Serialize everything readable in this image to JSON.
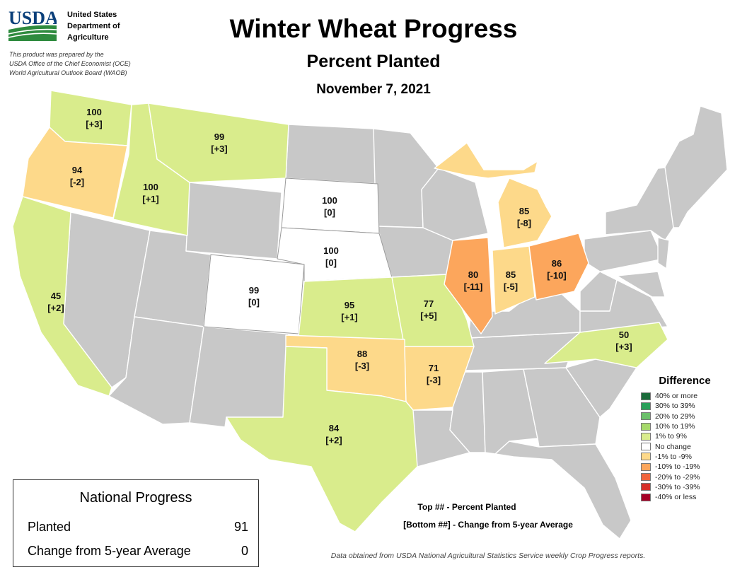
{
  "header": {
    "agency_abbr": "USDA",
    "agency_lines": [
      "United States",
      "Department of",
      "Agriculture"
    ],
    "prepared_lines": [
      "This product was prepared by the",
      "USDA Office of the Chief Economist (OCE)",
      "World Agricultural Outlook Board (WAOB)"
    ],
    "title": "Winter Wheat Progress",
    "subtitle": "Percent Planted",
    "date": "November 7, 2021"
  },
  "colors": {
    "no_data": "#c8c8c8",
    "gain_1_9": "#d9ec8c",
    "no_change": "#ffffff",
    "loss_1_9": "#fdd98a",
    "loss_10_19": "#fca65c",
    "usda_blue": "#0a3f7a",
    "usda_green": "#2e8b3e"
  },
  "states": [
    {
      "name": "Washington",
      "value": "100",
      "change": "[+3]",
      "color": "#d9ec8c"
    },
    {
      "name": "Oregon",
      "value": "94",
      "change": "[-2]",
      "color": "#fdd98a"
    },
    {
      "name": "Idaho",
      "value": "100",
      "change": "[+1]",
      "color": "#d9ec8c"
    },
    {
      "name": "Montana",
      "value": "99",
      "change": "[+3]",
      "color": "#d9ec8c"
    },
    {
      "name": "California",
      "value": "45",
      "change": "[+2]",
      "color": "#d9ec8c"
    },
    {
      "name": "South Dakota",
      "value": "100",
      "change": "[0]",
      "color": "#ffffff"
    },
    {
      "name": "Nebraska",
      "value": "100",
      "change": "[0]",
      "color": "#ffffff"
    },
    {
      "name": "Colorado",
      "value": "99",
      "change": "[0]",
      "color": "#ffffff"
    },
    {
      "name": "Kansas",
      "value": "95",
      "change": "[+1]",
      "color": "#d9ec8c"
    },
    {
      "name": "Missouri",
      "value": "77",
      "change": "[+5]",
      "color": "#d9ec8c"
    },
    {
      "name": "Illinois",
      "value": "80",
      "change": "[-11]",
      "color": "#fca65c"
    },
    {
      "name": "Indiana",
      "value": "85",
      "change": "[-5]",
      "color": "#fdd98a"
    },
    {
      "name": "Ohio",
      "value": "86",
      "change": "[-10]",
      "color": "#fca65c"
    },
    {
      "name": "Michigan",
      "value": "85",
      "change": "[-8]",
      "color": "#fdd98a"
    },
    {
      "name": "Oklahoma",
      "value": "88",
      "change": "[-3]",
      "color": "#fdd98a"
    },
    {
      "name": "Arkansas",
      "value": "71",
      "change": "[-3]",
      "color": "#fdd98a"
    },
    {
      "name": "Texas",
      "value": "84",
      "change": "[+2]",
      "color": "#d9ec8c"
    },
    {
      "name": "North Carolina",
      "value": "50",
      "change": "[+3]",
      "color": "#d9ec8c"
    }
  ],
  "legend": {
    "title": "Difference",
    "items": [
      {
        "label": "40% or more",
        "color": "#1a6b3a"
      },
      {
        "label": "30% to 39%",
        "color": "#2aa05a"
      },
      {
        "label": "20% to 29%",
        "color": "#6bc06a"
      },
      {
        "label": "10% to 19%",
        "color": "#a6d96a"
      },
      {
        "label": "1% to 9%",
        "color": "#d9ec8c"
      },
      {
        "label": "No change",
        "color": "#ffffff"
      },
      {
        "label": "-1% to -9%",
        "color": "#fdd98a"
      },
      {
        "label": "-10% to -19%",
        "color": "#fca65c"
      },
      {
        "label": "-20% to -29%",
        "color": "#f0643c"
      },
      {
        "label": "-30% to -39%",
        "color": "#d7302a"
      },
      {
        "label": "-40% or less",
        "color": "#a50026"
      }
    ]
  },
  "national": {
    "title": "National Progress",
    "planted_label": "Planted",
    "planted_value": "91",
    "change_label": "Change from 5-year Average",
    "change_value": "0"
  },
  "key": {
    "top": "Top ## - Percent Planted",
    "bottom": "[Bottom ##] - Change from 5-year Average"
  },
  "source": "Data obtained from USDA National Agricultural Statistics Service weekly Crop Progress reports."
}
